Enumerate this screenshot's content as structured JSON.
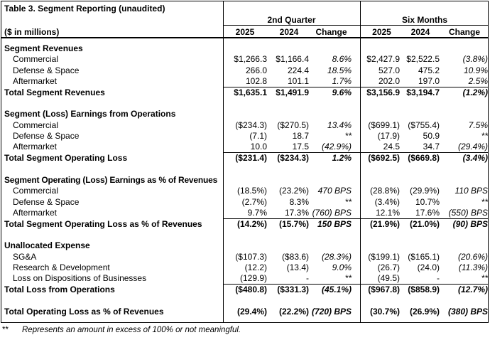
{
  "table": {
    "title": "Table 3.  Segment Reporting (unaudited)",
    "unit_label": "($ in millions)",
    "groups": [
      "2nd Quarter",
      "Six Months"
    ],
    "columns": [
      "2025",
      "2024",
      "Change",
      "2025",
      "2024",
      "Change"
    ],
    "rows": {
      "seg_rev_head": "Segment Revenues",
      "rev_commercial": {
        "label": "Commercial",
        "v": [
          "$1,266.3",
          "$1,166.4",
          "8.6%",
          "$2,427.9",
          "$2,522.5",
          "(3.8%)"
        ]
      },
      "rev_defense": {
        "label": "Defense & Space",
        "v": [
          "266.0",
          "224.4",
          "18.5%",
          "527.0",
          "475.2",
          "10.9%"
        ]
      },
      "rev_aftermarket": {
        "label": "Aftermarket",
        "v": [
          "102.8",
          "101.1",
          "1.7%",
          "202.0",
          "197.0",
          "2.5%"
        ]
      },
      "rev_total": {
        "label": "Total Segment Revenues",
        "v": [
          "$1,635.1",
          "$1,491.9",
          "9.6%",
          "$3,156.9",
          "$3,194.7",
          "(1.2%)"
        ]
      },
      "seg_ops_head": "Segment (Loss) Earnings from Operations",
      "ops_commercial": {
        "label": "Commercial",
        "v": [
          "($234.3)",
          "($270.5)",
          "13.4%",
          "($699.1)",
          "($755.4)",
          "7.5%"
        ]
      },
      "ops_defense": {
        "label": "Defense & Space",
        "v": [
          "(7.1)",
          "18.7",
          "**",
          "(17.9)",
          "50.9",
          "**"
        ]
      },
      "ops_aftermarket": {
        "label": "Aftermarket",
        "v": [
          "10.0",
          "17.5",
          "(42.9%)",
          "24.5",
          "34.7",
          "(29.4%)"
        ]
      },
      "ops_total": {
        "label": "Total Segment Operating Loss",
        "v": [
          "($231.4)",
          "($234.3)",
          "1.2%",
          "($692.5)",
          "($669.8)",
          "(3.4%)"
        ]
      },
      "pct_head": "Segment Operating (Loss) Earnings as % of Revenues",
      "pct_commercial": {
        "label": "Commercial",
        "v": [
          "(18.5%)",
          "(23.2%)",
          "470 BPS",
          "(28.8%)",
          "(29.9%)",
          "110 BPS"
        ]
      },
      "pct_defense": {
        "label": "Defense & Space",
        "v": [
          "(2.7%)",
          "8.3%",
          "**",
          "(3.4%)",
          "10.7%",
          "**"
        ]
      },
      "pct_aftermarket": {
        "label": "Aftermarket",
        "v": [
          "9.7%",
          "17.3%",
          "(760) BPS",
          "12.1%",
          "17.6%",
          "(550) BPS"
        ]
      },
      "pct_total": {
        "label": "Total Segment Operating Loss as % of Revenues",
        "v": [
          "(14.2%)",
          "(15.7%)",
          "150 BPS",
          "(21.9%)",
          "(21.0%)",
          "(90) BPS"
        ]
      },
      "unalloc_head": "Unallocated Expense",
      "sga": {
        "label": "SG&A",
        "v": [
          "($107.3)",
          "($83.6)",
          "(28.3%)",
          "($199.1)",
          "($165.1)",
          "(20.6%)"
        ]
      },
      "rnd": {
        "label": "Research & Development",
        "v": [
          "(12.2)",
          "(13.4)",
          "9.0%",
          "(26.7)",
          "(24.0)",
          "(11.3%)"
        ]
      },
      "loss_disp": {
        "label": "Loss on Dispositions of Businesses",
        "v": [
          "(129.9)",
          "-",
          "**",
          "(49.5)",
          "-",
          "**"
        ]
      },
      "total_loss_ops": {
        "label": "Total Loss from Operations",
        "v": [
          "($480.8)",
          "($331.3)",
          "(45.1%)",
          "($967.8)",
          "($858.9)",
          "(12.7%)"
        ]
      },
      "total_op_pct": {
        "label": "Total Operating Loss as % of Revenues",
        "v": [
          "(29.4%)",
          "(22.2%)",
          "(720) BPS",
          "(30.7%)",
          "(26.9%)",
          "(380) BPS"
        ]
      }
    }
  },
  "footnote": {
    "mark": "**",
    "text": "Represents an amount in excess of 100% or not meaningful."
  }
}
